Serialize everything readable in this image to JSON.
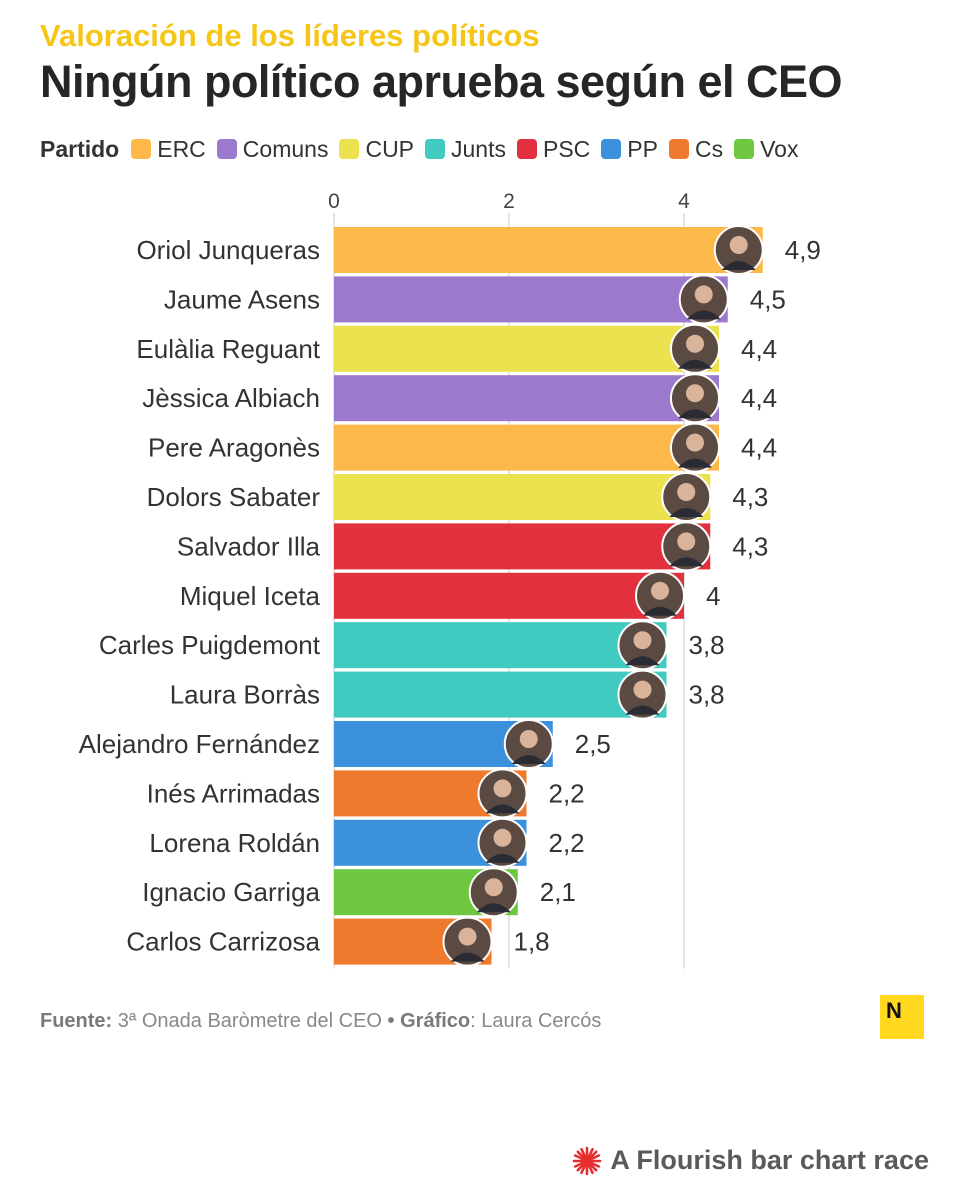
{
  "header": {
    "kicker": "Valoración de los líderes políticos",
    "title": "Ningún político aprueba según el CEO"
  },
  "legend": {
    "title": "Partido",
    "items": [
      {
        "label": "ERC",
        "color": "#fdb84a"
      },
      {
        "label": "Comuns",
        "color": "#9b79cc"
      },
      {
        "label": "CUP",
        "color": "#ece250"
      },
      {
        "label": "Junts",
        "color": "#41cbc0"
      },
      {
        "label": "PSC",
        "color": "#e2303f"
      },
      {
        "label": "PP",
        "color": "#3b91db"
      },
      {
        "label": "Cs",
        "color": "#ef7a2d"
      },
      {
        "label": "Vox",
        "color": "#6dc73f"
      }
    ]
  },
  "chart_data": {
    "type": "bar",
    "orientation": "horizontal",
    "categories": [
      "Oriol Junqueras",
      "Jaume Asens",
      "Eulàlia Reguant",
      "Jèssica Albiach",
      "Pere Aragonès",
      "Dolors Sabater",
      "Salvador Illa",
      "Miquel Iceta",
      "Carles Puigdemont",
      "Laura Borràs",
      "Alejandro Fernández",
      "Inés Arrimadas",
      "Lorena Roldán",
      "Ignacio Garriga",
      "Carlos Carrizosa"
    ],
    "values": [
      4.9,
      4.5,
      4.4,
      4.4,
      4.4,
      4.3,
      4.3,
      4.0,
      3.8,
      3.8,
      2.5,
      2.2,
      2.2,
      2.1,
      1.8
    ],
    "value_labels": [
      "4,9",
      "4,5",
      "4,4",
      "4,4",
      "4,4",
      "4,3",
      "4,3",
      "4",
      "3,8",
      "3,8",
      "2,5",
      "2,2",
      "2,2",
      "2,1",
      "1,8"
    ],
    "parties": [
      "ERC",
      "Comuns",
      "CUP",
      "Comuns",
      "ERC",
      "CUP",
      "PSC",
      "PSC",
      "Junts",
      "Junts",
      "PP",
      "Cs",
      "PP",
      "Vox",
      "Cs"
    ],
    "xlim": [
      0,
      5
    ],
    "xticks": [
      0,
      2,
      4
    ],
    "xtick_labels": [
      "0",
      "2",
      "4"
    ],
    "grid": true,
    "axis_position": "top",
    "legend_position": "top-left"
  },
  "footer": {
    "source_label": "Fuente:",
    "source_text": "3ª Onada Baròmetre del CEO",
    "separator": "•",
    "credit_label": "Gráfico",
    "credit_text": ": Laura Cercós",
    "logo_letter": "N",
    "flourish_text": "A Flourish bar chart race"
  }
}
